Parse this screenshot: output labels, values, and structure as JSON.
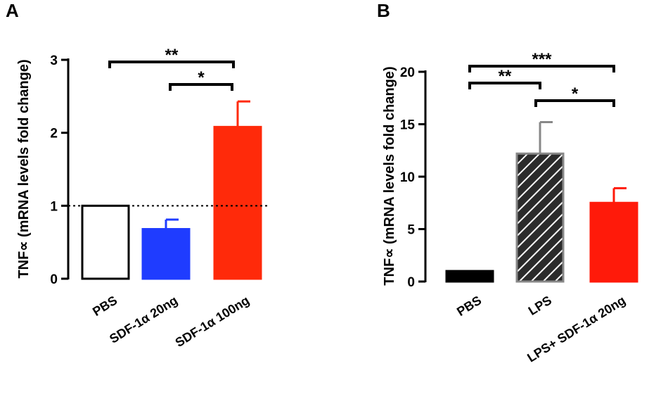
{
  "chart_data": [
    {
      "panel": "A",
      "type": "bar",
      "ylabel": "TNF∝ (mRNA levels fold change)",
      "ylim": [
        0,
        3
      ],
      "yticks": [
        "0",
        "1",
        "2",
        "3"
      ],
      "ytick_values": [
        0,
        1,
        2,
        3
      ],
      "reference_line": 1,
      "categories": [
        "PBS",
        "SDF-1α 20ng",
        "SDF-1α 100ng"
      ],
      "values": [
        1.0,
        0.68,
        2.08
      ],
      "errors": [
        0,
        0.13,
        0.35
      ],
      "colors": {
        "bar_1": "#ffffff",
        "bar_2": "#1f3cff",
        "bar_3": "#ff2a0a"
      },
      "significance": [
        {
          "from": 0,
          "to": 2,
          "label": "**"
        },
        {
          "from": 1,
          "to": 2,
          "label": "*"
        }
      ]
    },
    {
      "panel": "B",
      "type": "bar",
      "ylabel": "TNF∝ (mRNA levels fold change)",
      "ylim": [
        0,
        20
      ],
      "yticks": [
        "0",
        "5",
        "10",
        "15",
        "20"
      ],
      "ytick_values": [
        0,
        5,
        10,
        15,
        20
      ],
      "categories": [
        "PBS",
        "LPS",
        "LPS+ SDF-1α 20ng"
      ],
      "values": [
        1.0,
        12.2,
        7.5
      ],
      "errors": [
        0,
        3.0,
        1.4
      ],
      "colors": {
        "bar_1": "#000000",
        "bar_2": "#2b2b2b",
        "bar_3": "#ff1a0a"
      },
      "significance": [
        {
          "from": 0,
          "to": 1,
          "label": "**"
        },
        {
          "from": 0,
          "to": 2,
          "label": "***"
        },
        {
          "from": 1,
          "to": 2,
          "label": "*"
        }
      ]
    }
  ]
}
